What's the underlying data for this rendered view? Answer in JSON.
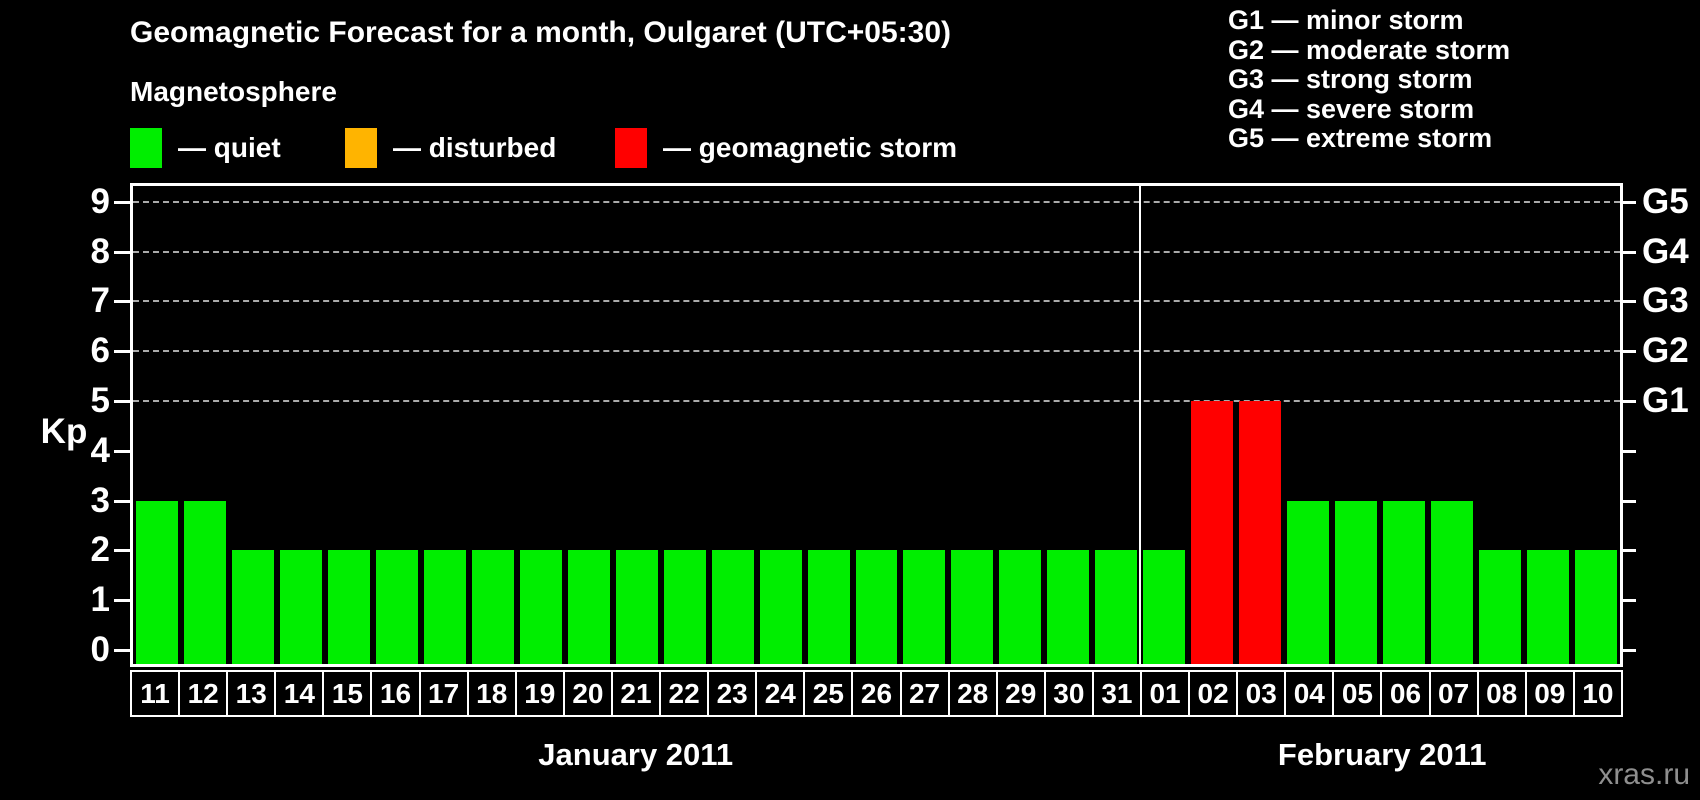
{
  "title": "Geomagnetic Forecast for a month, Oulgaret (UTC+05:30)",
  "section_label": "Magnetosphere",
  "legend": [
    {
      "status": "quiet",
      "label": "— quiet",
      "color": "#00ee00"
    },
    {
      "status": "disturbed",
      "label": "— disturbed",
      "color": "#ffb400"
    },
    {
      "status": "storm",
      "label": "— geomagnetic storm",
      "color": "#ff0000"
    }
  ],
  "storm_scale": [
    {
      "code": "G1",
      "label": "G1 — minor storm"
    },
    {
      "code": "G2",
      "label": "G2 — moderate storm"
    },
    {
      "code": "G3",
      "label": "G3 — strong storm"
    },
    {
      "code": "G4",
      "label": "G4 — severe storm"
    },
    {
      "code": "G5",
      "label": "G5 — extreme storm"
    }
  ],
  "watermark": "xras.ru",
  "chart_data": {
    "type": "bar",
    "ylabel": "Kp",
    "ylim": [
      0,
      9.3
    ],
    "y_ticks": [
      0,
      1,
      2,
      3,
      4,
      5,
      6,
      7,
      8,
      9
    ],
    "grid_values": [
      5,
      6,
      7,
      8,
      9
    ],
    "grid_style": "dashed",
    "right_axis": [
      {
        "kp": 5,
        "label": "G1"
      },
      {
        "kp": 6,
        "label": "G2"
      },
      {
        "kp": 7,
        "label": "G3"
      },
      {
        "kp": 8,
        "label": "G4"
      },
      {
        "kp": 9,
        "label": "G5"
      }
    ],
    "status_colors": {
      "quiet": "#00ee00",
      "disturbed": "#ffb400",
      "storm": "#ff0000"
    },
    "months": [
      {
        "label": "January 2011",
        "days": [
          {
            "day": "11",
            "kp": 3,
            "status": "quiet"
          },
          {
            "day": "12",
            "kp": 3,
            "status": "quiet"
          },
          {
            "day": "13",
            "kp": 2,
            "status": "quiet"
          },
          {
            "day": "14",
            "kp": 2,
            "status": "quiet"
          },
          {
            "day": "15",
            "kp": 2,
            "status": "quiet"
          },
          {
            "day": "16",
            "kp": 2,
            "status": "quiet"
          },
          {
            "day": "17",
            "kp": 2,
            "status": "quiet"
          },
          {
            "day": "18",
            "kp": 2,
            "status": "quiet"
          },
          {
            "day": "19",
            "kp": 2,
            "status": "quiet"
          },
          {
            "day": "20",
            "kp": 2,
            "status": "quiet"
          },
          {
            "day": "21",
            "kp": 2,
            "status": "quiet"
          },
          {
            "day": "22",
            "kp": 2,
            "status": "quiet"
          },
          {
            "day": "23",
            "kp": 2,
            "status": "quiet"
          },
          {
            "day": "24",
            "kp": 2,
            "status": "quiet"
          },
          {
            "day": "25",
            "kp": 2,
            "status": "quiet"
          },
          {
            "day": "26",
            "kp": 2,
            "status": "quiet"
          },
          {
            "day": "27",
            "kp": 2,
            "status": "quiet"
          },
          {
            "day": "28",
            "kp": 2,
            "status": "quiet"
          },
          {
            "day": "29",
            "kp": 2,
            "status": "quiet"
          },
          {
            "day": "30",
            "kp": 2,
            "status": "quiet"
          },
          {
            "day": "31",
            "kp": 2,
            "status": "quiet"
          }
        ]
      },
      {
        "label": "February 2011",
        "days": [
          {
            "day": "01",
            "kp": 2,
            "status": "quiet"
          },
          {
            "day": "02",
            "kp": 5,
            "status": "storm"
          },
          {
            "day": "03",
            "kp": 5,
            "status": "storm"
          },
          {
            "day": "04",
            "kp": 3,
            "status": "quiet"
          },
          {
            "day": "05",
            "kp": 3,
            "status": "quiet"
          },
          {
            "day": "06",
            "kp": 3,
            "status": "quiet"
          },
          {
            "day": "07",
            "kp": 3,
            "status": "quiet"
          },
          {
            "day": "08",
            "kp": 2,
            "status": "quiet"
          },
          {
            "day": "09",
            "kp": 2,
            "status": "quiet"
          },
          {
            "day": "10",
            "kp": 2,
            "status": "quiet"
          }
        ]
      }
    ]
  }
}
